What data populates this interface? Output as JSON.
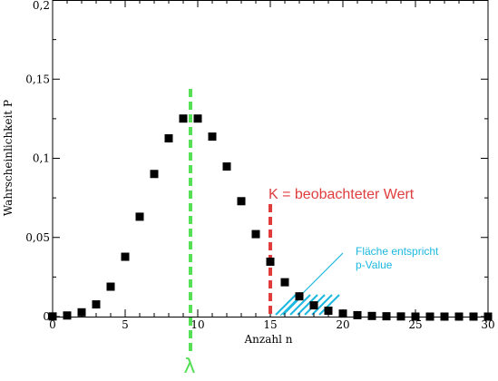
{
  "chart_data": {
    "type": "scatter",
    "title": "",
    "xlabel": "Anzahl n",
    "ylabel": "Wahrscheinlichkeit P",
    "xlim": [
      0,
      30
    ],
    "ylim": [
      0,
      0.2
    ],
    "grid": false,
    "x_ticks": [
      0,
      5,
      10,
      15,
      20,
      25,
      30
    ],
    "y_ticks": [
      0,
      0.05,
      0.1,
      0.15,
      0.2
    ],
    "y_tick_labels": [
      "0",
      "0,05",
      "0,1",
      "0,15",
      "0,2"
    ],
    "x_tick_labels": [
      "0",
      "5",
      "10",
      "15",
      "20",
      "25",
      "30"
    ],
    "marker": "square",
    "marker_color": "#000000",
    "series": [
      {
        "x": [
          0,
          1,
          2,
          3,
          4,
          5,
          6,
          7,
          8,
          9,
          10,
          11,
          12,
          13,
          14,
          15,
          16,
          17,
          18,
          19,
          20,
          21,
          22,
          23,
          24,
          25,
          26,
          27,
          28,
          29,
          30
        ],
        "values": [
          0.0001,
          0.0007,
          0.0027,
          0.0077,
          0.0189,
          0.0378,
          0.0631,
          0.0901,
          0.1126,
          0.1251,
          0.1251,
          0.1137,
          0.0948,
          0.0729,
          0.0521,
          0.0347,
          0.0217,
          0.0128,
          0.0071,
          0.0037,
          0.0019,
          0.0009,
          0.0004,
          0.0002,
          0.0001,
          0.0,
          0.0,
          0.0,
          0.0,
          0.0,
          0.0
        ]
      }
    ],
    "lambda_line": {
      "x": 9.5,
      "label": "λ",
      "color": "#55e055"
    },
    "k_line": {
      "x": 15,
      "label": "K = beobachteter Wert",
      "color": "#e03c3c"
    },
    "p_area": {
      "x_from": 15,
      "x_to": 18,
      "label_line1": "Fläche entspricht",
      "label_line2": "p-Value",
      "color": "#1cb8e0"
    }
  }
}
